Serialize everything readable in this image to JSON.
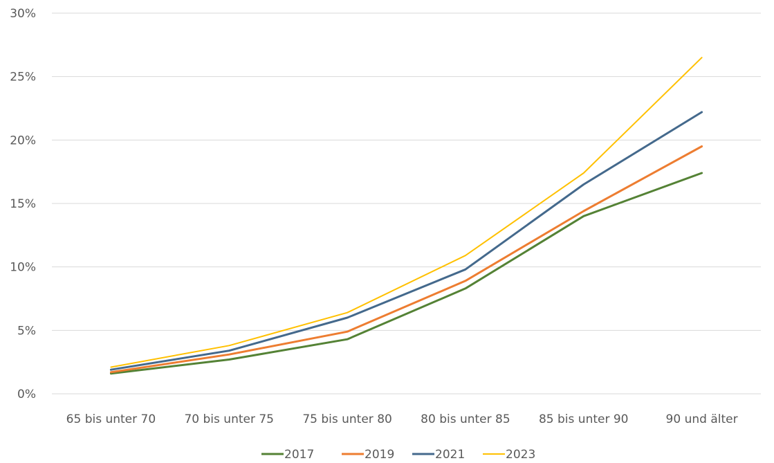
{
  "chart_data": {
    "type": "line",
    "title": "",
    "xlabel": "",
    "ylabel": "",
    "categories": [
      "65 bis unter 70",
      "70 bis unter 75",
      "75 bis unter 80",
      "80 bis unter 85",
      "85 bis unter 90",
      "90 und älter"
    ],
    "y_ticks": [
      "0%",
      "5%",
      "10%",
      "15%",
      "20%",
      "25%",
      "30%"
    ],
    "ylim": [
      0,
      30
    ],
    "grid": true,
    "legend_position": "bottom",
    "series": [
      {
        "name": "2017",
        "color": "#548235",
        "values": [
          1.6,
          2.7,
          4.3,
          8.3,
          14.0,
          17.4
        ]
      },
      {
        "name": "2019",
        "color": "#ED7D31",
        "values": [
          1.7,
          3.1,
          4.9,
          8.9,
          14.4,
          19.5
        ]
      },
      {
        "name": "2021",
        "color": "#44698C",
        "values": [
          1.9,
          3.4,
          6.0,
          9.8,
          16.5,
          22.2
        ]
      },
      {
        "name": "2023",
        "color": "#FFC000",
        "values": [
          2.1,
          3.8,
          6.4,
          10.9,
          17.4,
          26.5
        ]
      }
    ]
  }
}
